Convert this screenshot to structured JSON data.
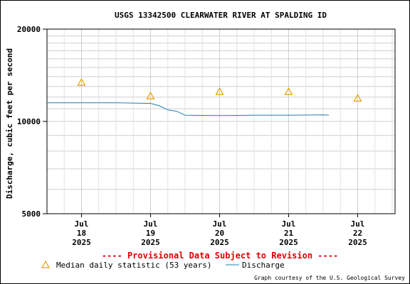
{
  "chart_data": {
    "type": "line",
    "title": "USGS 13342500 CLEARWATER RIVER AT SPALDING ID",
    "ylabel": "Discharge, cubic feet per second",
    "xlabel": "",
    "y_scale": "log",
    "ylim": [
      5000,
      20000
    ],
    "y_ticks": [
      "20000",
      "10000",
      "5000"
    ],
    "xlim": [
      "2025-07-17 12:00",
      "2025-07-22 13:00"
    ],
    "x_ticks": [
      {
        "lines": [
          "Jul",
          "18",
          "2025"
        ],
        "x": "2025-07-18 00:00"
      },
      {
        "lines": [
          "Jul",
          "19",
          "2025"
        ],
        "x": "2025-07-19 00:00"
      },
      {
        "lines": [
          "Jul",
          "20",
          "2025"
        ],
        "x": "2025-07-20 00:00"
      },
      {
        "lines": [
          "Jul",
          "21",
          "2025"
        ],
        "x": "2025-07-21 00:00"
      },
      {
        "lines": [
          "Jul",
          "22",
          "2025"
        ],
        "x": "2025-07-22 00:00"
      }
    ],
    "grid": true,
    "series": [
      {
        "name": "Discharge",
        "color": "#1f7fb0",
        "style": "line",
        "points": [
          [
            "2025-07-17 12:00",
            11500
          ],
          [
            "2025-07-18 00:00",
            11500
          ],
          [
            "2025-07-18 12:00",
            11500
          ],
          [
            "2025-07-19 00:00",
            11450
          ],
          [
            "2025-07-19 03:00",
            11250
          ],
          [
            "2025-07-19 06:00",
            10900
          ],
          [
            "2025-07-19 09:00",
            10800
          ],
          [
            "2025-07-19 12:00",
            10480
          ],
          [
            "2025-07-20 00:00",
            10450
          ],
          [
            "2025-07-20 12:00",
            10480
          ],
          [
            "2025-07-21 00:00",
            10480
          ],
          [
            "2025-07-21 12:00",
            10500
          ],
          [
            "2025-07-21 14:00",
            10480
          ]
        ]
      },
      {
        "name": "Median daily statistic (53 years)",
        "color": "#e8a000",
        "style": "triangle",
        "points": [
          [
            "2025-07-18 00:00",
            13400
          ],
          [
            "2025-07-19 00:00",
            12100
          ],
          [
            "2025-07-20 00:00",
            12500
          ],
          [
            "2025-07-21 00:00",
            12500
          ],
          [
            "2025-07-22 00:00",
            11900
          ]
        ]
      }
    ]
  },
  "provisional_note": "---- Provisional Data Subject to Revision ----",
  "legend": {
    "median_label": "Median daily statistic (53 years)",
    "discharge_label": "Discharge"
  },
  "courtesy": "Graph courtesy of the U.S. Geological Survey"
}
